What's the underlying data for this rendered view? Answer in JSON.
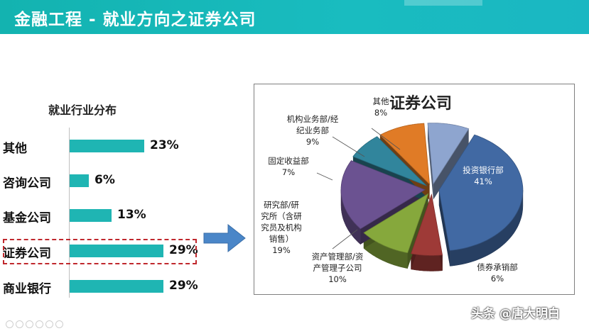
{
  "header": {
    "title": "金融工程 - 就业方向之证券公司"
  },
  "left_chart": {
    "title": "就业行业分布"
  },
  "right_chart": {
    "title": "证券公司"
  },
  "watermark": "头条 @唐大明白",
  "colors": {
    "header": "#13b3b0",
    "bar": "#1fb5b3",
    "highlight": "#c0282d",
    "arrow": "#4a86c8"
  },
  "chart_data": [
    {
      "type": "bar",
      "orientation": "horizontal",
      "title": "就业行业分布",
      "categories": [
        "其他",
        "咨询公司",
        "基金公司",
        "证券公司",
        "商业银行"
      ],
      "values": [
        23,
        6,
        13,
        29,
        29
      ],
      "value_labels": [
        "23%",
        "6%",
        "13%",
        "29%",
        "29%"
      ],
      "highlighted": "证券公司",
      "unit": "%"
    },
    {
      "type": "pie",
      "title": "证券公司",
      "slices": [
        {
          "label_lines": [
            "投资银行部"
          ],
          "value": 41,
          "value_label": "41%",
          "color": "#4169a3"
        },
        {
          "label_lines": [
            "债券承销部"
          ],
          "value": 6,
          "value_label": "6%",
          "color": "#9e3a37"
        },
        {
          "label_lines": [
            "资产管理部/资",
            "产管理子公司"
          ],
          "value": 10,
          "value_label": "10%",
          "color": "#86a83c"
        },
        {
          "label_lines": [
            "研究部/研",
            "究所（含研",
            "究员及机构",
            "销售）"
          ],
          "value": 19,
          "value_label": "19%",
          "color": "#6b5291"
        },
        {
          "label_lines": [
            "固定收益部"
          ],
          "value": 7,
          "value_label": "7%",
          "color": "#31859c"
        },
        {
          "label_lines": [
            "机构业务部/经",
            "纪业务部"
          ],
          "value": 9,
          "value_label": "9%",
          "color": "#e07b26"
        },
        {
          "label_lines": [
            "其他"
          ],
          "value": 8,
          "value_label": "8%",
          "color": "#8ea5cf"
        }
      ]
    }
  ]
}
